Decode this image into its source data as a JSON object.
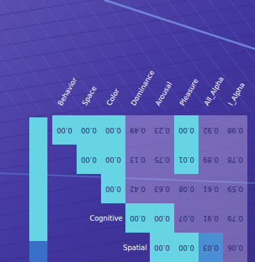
{
  "chart_data": {
    "type": "heatmap",
    "categories": [
      "Behavior",
      "Space",
      "Color",
      "Dominance",
      "Arousal",
      "Pleasure",
      "All_Alpha",
      "l_Alpha"
    ],
    "rows": [
      null,
      null,
      null,
      "Cognitive",
      "Spatial"
    ],
    "cells": [
      [
        0.0,
        0.0,
        0.0,
        0.49,
        0.23,
        0.0,
        0.92,
        0.98
      ],
      [
        null,
        0.0,
        0.0,
        0.13,
        0.75,
        0.01,
        0.89,
        0.78
      ],
      [
        null,
        null,
        0.0,
        0.42,
        0.63,
        0.08,
        0.61,
        0.59
      ],
      [
        null,
        null,
        null,
        0.0,
        0.0,
        0.07,
        0.91,
        0.79
      ],
      [
        null,
        null,
        null,
        null,
        0.0,
        0.0,
        0.03,
        0.06
      ]
    ],
    "data_labels": true
  }
}
